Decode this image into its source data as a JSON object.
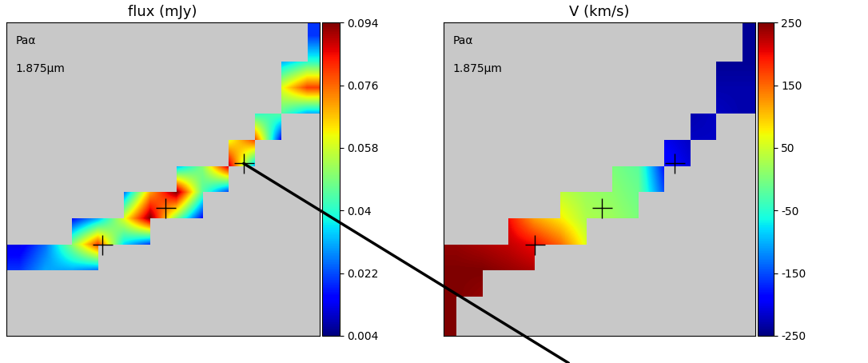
{
  "chart_data": [
    {
      "type": "heatmap",
      "title": "flux (mJy)",
      "annotations": [
        "Paα",
        "1.875μm"
      ],
      "tick_labels": false,
      "cells": [
        [
          null,
          null,
          null,
          null,
          null,
          null,
          null,
          null,
          null,
          null,
          null,
          0.02
        ],
        [
          null,
          null,
          null,
          null,
          null,
          null,
          null,
          null,
          null,
          null,
          0.03,
          0.04
        ],
        [
          null,
          null,
          null,
          null,
          null,
          null,
          null,
          null,
          null,
          null,
          0.06,
          0.08
        ],
        [
          null,
          null,
          null,
          null,
          null,
          null,
          null,
          null,
          null,
          0.04,
          0.045,
          0.03
        ],
        [
          null,
          null,
          null,
          null,
          null,
          null,
          null,
          null,
          0.06,
          0.08,
          0.015,
          null
        ],
        [
          null,
          null,
          null,
          null,
          null,
          null,
          0.03,
          0.05,
          0.09,
          0.03,
          null,
          null
        ],
        [
          null,
          null,
          null,
          null,
          0.025,
          0.07,
          0.094,
          0.045,
          0.02,
          null,
          null,
          null
        ],
        [
          null,
          null,
          0.015,
          0.03,
          0.06,
          0.094,
          0.05,
          0.015,
          null,
          null,
          null,
          null
        ],
        [
          0.012,
          0.025,
          0.05,
          0.08,
          0.035,
          0.02,
          null,
          null,
          null,
          null,
          null,
          null
        ],
        [
          0.02,
          0.03,
          0.03,
          0.025,
          null,
          null,
          null,
          null,
          null,
          null,
          null,
          null
        ],
        [
          null,
          null,
          null,
          null,
          null,
          null,
          null,
          null,
          null,
          null,
          null,
          null
        ],
        [
          null,
          null,
          null,
          null,
          null,
          null,
          null,
          null,
          null,
          null,
          null,
          null
        ]
      ],
      "clim": [
        0.004,
        0.094
      ],
      "cticks": [
        0.004,
        0.022,
        0.04,
        0.058,
        0.076,
        0.094
      ],
      "crosses": {
        "x": [
          3.7,
          6.1,
          9.1
        ],
        "y": [
          8.5,
          7.1,
          5.4
        ]
      }
    },
    {
      "type": "heatmap",
      "title": "V (km/s)",
      "annotations": [
        "Paα",
        "1.875μm"
      ],
      "tick_labels": false,
      "cells": [
        [
          null,
          null,
          null,
          null,
          null,
          null,
          null,
          null,
          null,
          null,
          null,
          -240
        ],
        [
          null,
          null,
          null,
          null,
          null,
          null,
          null,
          null,
          null,
          null,
          -240,
          -240
        ],
        [
          null,
          null,
          null,
          null,
          null,
          null,
          null,
          null,
          null,
          null,
          -230,
          -230
        ],
        [
          null,
          null,
          null,
          null,
          null,
          null,
          null,
          null,
          null,
          -230,
          -220,
          -230
        ],
        [
          null,
          null,
          null,
          null,
          null,
          null,
          null,
          null,
          -200,
          -220,
          -220,
          null
        ],
        [
          null,
          null,
          null,
          null,
          null,
          null,
          0,
          -20,
          -180,
          -210,
          null,
          null
        ],
        [
          null,
          null,
          null,
          null,
          40,
          20,
          10,
          -10,
          -150,
          null,
          null,
          null
        ],
        [
          null,
          null,
          200,
          120,
          80,
          30,
          20,
          0,
          null,
          null,
          null,
          null
        ],
        [
          240,
          230,
          220,
          200,
          150,
          60,
          null,
          null,
          null,
          null,
          null,
          null
        ],
        [
          250,
          250,
          240,
          230,
          null,
          null,
          null,
          null,
          null,
          null,
          null,
          null
        ],
        [
          250,
          240,
          null,
          null,
          null,
          null,
          null,
          null,
          null,
          null,
          null,
          null
        ],
        [
          250,
          null,
          null,
          null,
          null,
          null,
          null,
          null,
          null,
          null,
          null,
          null
        ]
      ],
      "clim": [
        -250,
        250
      ],
      "cticks": [
        -250,
        -150,
        -50,
        50,
        150,
        250
      ],
      "crosses": {
        "x": [
          3.5,
          6.1,
          8.9
        ],
        "y": [
          8.5,
          7.1,
          5.4
        ]
      }
    }
  ]
}
